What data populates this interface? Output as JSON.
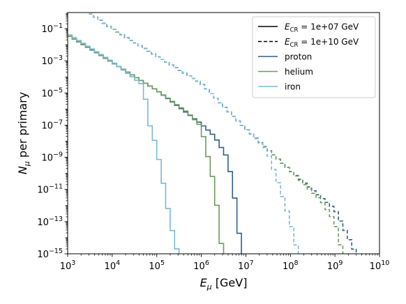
{
  "chart_data": {
    "type": "line",
    "xlabel": "E_μ [GeV]",
    "ylabel": "N_μ per primary",
    "x_scale": "log",
    "y_scale": "log",
    "xlim": [
      1000,
      10000000000
    ],
    "ylim": [
      1e-15,
      1
    ],
    "x_ticks": [
      {
        "value": 1000,
        "base": "10",
        "exp": "3"
      },
      {
        "value": 10000,
        "base": "10",
        "exp": "4"
      },
      {
        "value": 100000,
        "base": "10",
        "exp": "5"
      },
      {
        "value": 1000000,
        "base": "10",
        "exp": "6"
      },
      {
        "value": 10000000,
        "base": "10",
        "exp": "7"
      },
      {
        "value": 100000000,
        "base": "10",
        "exp": "8"
      },
      {
        "value": 1000000000,
        "base": "10",
        "exp": "9"
      },
      {
        "value": 10000000000,
        "base": "10",
        "exp": "10"
      }
    ],
    "y_ticks": [
      {
        "value": 0.1,
        "base": "10",
        "exp": "−1"
      },
      {
        "value": 0.001,
        "base": "10",
        "exp": "−3"
      },
      {
        "value": 1e-05,
        "base": "10",
        "exp": "−5"
      },
      {
        "value": 1e-07,
        "base": "10",
        "exp": "−7"
      },
      {
        "value": 1e-09,
        "base": "10",
        "exp": "−9"
      },
      {
        "value": 1e-11,
        "base": "10",
        "exp": "−11"
      },
      {
        "value": 1e-13,
        "base": "10",
        "exp": "−13"
      },
      {
        "value": 1e-15,
        "base": "10",
        "exp": "−15"
      }
    ],
    "legend": {
      "placement": "top-right",
      "entries": [
        {
          "label": "E_CR = 1e+07 GeV",
          "style": "solid",
          "color": "#000000"
        },
        {
          "label": "E_CR = 1e+10 GeV",
          "style": "dashed",
          "color": "#000000"
        },
        {
          "label": "proton",
          "style": "solid",
          "color": "#2e5f8a"
        },
        {
          "label": "helium",
          "style": "solid",
          "color": "#6e9a5e"
        },
        {
          "label": "iron",
          "style": "solid",
          "color": "#7ab8d6"
        }
      ]
    },
    "series": [
      {
        "primary": "proton",
        "energy": "1e+07",
        "style": "solid",
        "color": "#2e5f8a",
        "anchors": [
          [
            1000,
            0.04
          ],
          [
            10000,
            0.0008
          ],
          [
            100000,
            1.5e-05
          ],
          [
            1000000,
            1.2e-07
          ],
          [
            2000000,
            2e-08
          ],
          [
            4000000,
            8e-10
          ],
          [
            6000000,
            1e-12
          ],
          [
            8000000,
            1e-15
          ]
        ]
      },
      {
        "primary": "helium",
        "energy": "1e+07",
        "style": "solid",
        "color": "#6e9a5e",
        "anchors": [
          [
            1000,
            0.04
          ],
          [
            10000,
            0.0008
          ],
          [
            100000,
            1.5e-05
          ],
          [
            500000,
            6e-07
          ],
          [
            1000000,
            8e-08
          ],
          [
            2000000,
            1.5e-11
          ],
          [
            3000000,
            1e-15
          ]
        ]
      },
      {
        "primary": "iron",
        "energy": "1e+07",
        "style": "solid",
        "color": "#7ab8d6",
        "anchors": [
          [
            1000,
            0.05
          ],
          [
            10000,
            0.0009
          ],
          [
            50000,
            3e-05
          ],
          [
            70000,
            1e-07
          ],
          [
            100000,
            4e-09
          ],
          [
            150000,
            1e-11
          ],
          [
            200000,
            1e-13
          ],
          [
            300000,
            1e-15
          ]
        ]
      },
      {
        "primary": "proton",
        "energy": "1e+10",
        "style": "dashed",
        "color": "#2e5f8a",
        "anchors": [
          [
            3000,
            1
          ],
          [
            10000,
            0.1
          ],
          [
            100000,
            0.002
          ],
          [
            1000000,
            4e-05
          ],
          [
            10000000,
            6e-08
          ],
          [
            100000000,
            1.5e-10
          ],
          [
            1000000000,
            6e-13
          ],
          [
            3000000000,
            1e-15
          ]
        ]
      },
      {
        "primary": "helium",
        "energy": "1e+10",
        "style": "dashed",
        "color": "#6e9a5e",
        "anchors": [
          [
            3000,
            1
          ],
          [
            10000,
            0.1
          ],
          [
            100000,
            0.002
          ],
          [
            1000000,
            4e-05
          ],
          [
            10000000,
            6e-08
          ],
          [
            100000000,
            1.5e-10
          ],
          [
            500000000,
            2e-12
          ],
          [
            1000000000,
            1e-13
          ],
          [
            1500000000,
            1e-15
          ]
        ]
      },
      {
        "primary": "iron",
        "energy": "1e+10",
        "style": "dashed",
        "color": "#7ab8d6",
        "anchors": [
          [
            3000,
            1
          ],
          [
            10000,
            0.1
          ],
          [
            100000,
            0.002
          ],
          [
            1000000,
            4e-05
          ],
          [
            10000000,
            6e-08
          ],
          [
            30000000,
            3e-09
          ],
          [
            60000000,
            1e-11
          ],
          [
            100000000,
            1e-13
          ],
          [
            150000000,
            1e-15
          ]
        ]
      }
    ]
  }
}
